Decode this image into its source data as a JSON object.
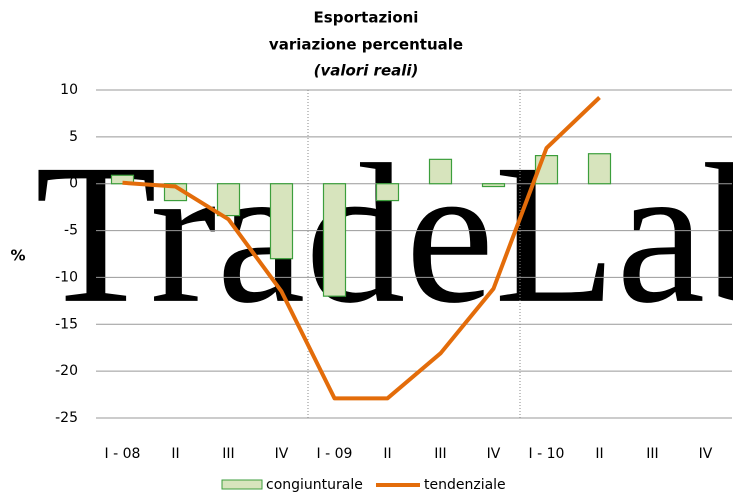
{
  "chart_data": {
    "type": "bar_line",
    "title": "Esportazioni",
    "subtitle": "variazione percentuale",
    "subtitle2": "(valori reali)",
    "ylabel": "%",
    "watermark": "TradeLab",
    "categories": [
      "I - 08",
      "II",
      "III",
      "IV",
      "I - 09",
      "II",
      "III",
      "IV",
      "I - 10",
      "II",
      "III",
      "IV"
    ],
    "series": [
      {
        "name": "congiunturale",
        "type": "bar",
        "color": "#d7e4bd",
        "edge": "#3c9e3c",
        "values": [
          0.9,
          -1.8,
          -3.4,
          -8.0,
          -12.0,
          -1.8,
          2.6,
          -0.3,
          3.0,
          3.2,
          null,
          null
        ]
      },
      {
        "name": "tendenziale",
        "type": "line",
        "color": "#e36c0a",
        "values": [
          0.1,
          -0.3,
          -3.8,
          -11.5,
          -22.9,
          -22.9,
          -18.1,
          -11.2,
          3.8,
          9.2,
          null,
          null
        ]
      }
    ],
    "ylim": [
      -25,
      10
    ],
    "yticks": [
      -25,
      -20,
      -15,
      -10,
      -5,
      0,
      5,
      10
    ],
    "grid": true
  }
}
